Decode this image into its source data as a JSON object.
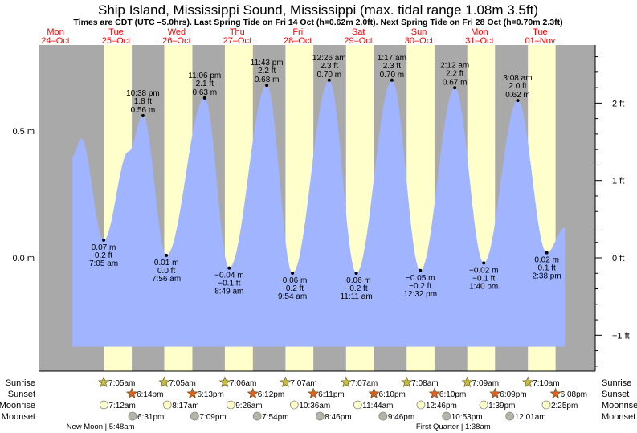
{
  "chart_data": {
    "type": "area",
    "title": "Ship Island, Mississippi Sound, Mississippi (max. tidal range 1.08m 3.5ft)",
    "subtitle": "Times are CDT (UTC –5.0hrs). Last Spring Tide on Fri 14 Oct (h=0.62m 2.0ft). Next Spring Tide on Fri 28 Oct (h=0.70m 2.3ft)",
    "time_origin": "25-Oct 00:00 (hours)",
    "days": [
      {
        "dow": "Mon",
        "date": "24–Oct",
        "t": -24
      },
      {
        "dow": "Tue",
        "date": "25–Oct",
        "t": 0
      },
      {
        "dow": "Wed",
        "date": "26–Oct",
        "t": 24
      },
      {
        "dow": "Thu",
        "date": "27–Oct",
        "t": 48
      },
      {
        "dow": "Fri",
        "date": "28–Oct",
        "t": 72
      },
      {
        "dow": "Sat",
        "date": "29–Oct",
        "t": 96
      },
      {
        "dow": "Sun",
        "date": "30–Oct",
        "t": 120
      },
      {
        "dow": "Mon",
        "date": "31–Oct",
        "t": 144
      },
      {
        "dow": "Tue",
        "date": "01–Nov",
        "t": 168
      }
    ],
    "left_axis": {
      "ticks": [
        {
          "v": 0.5,
          "label": "0.5 m"
        },
        {
          "v": 0.0,
          "label": "0.0 m"
        }
      ]
    },
    "right_axis": {
      "ticks": [
        {
          "ft": 2,
          "label": "2 ft"
        },
        {
          "ft": 1,
          "label": "1 ft"
        },
        {
          "ft": 0,
          "label": "0 ft"
        },
        {
          "ft": -1,
          "label": "−1 ft"
        }
      ]
    },
    "ylim_m": [
      -0.35,
      0.85
    ],
    "curve_points": [
      {
        "t": -5.3,
        "m": 0.4
      },
      {
        "t": -1.8,
        "m": 0.47
      },
      {
        "t": 17.0,
        "m": 0.42
      },
      {
        "t": 189.8,
        "m": 0.12
      }
    ],
    "extremes": [
      {
        "type": "low",
        "t": 7.08,
        "m": 0.07,
        "m_label": "0.07 m",
        "ft_label": "0.2 ft",
        "time": "7:05 am"
      },
      {
        "type": "high",
        "t": 22.63,
        "m": 0.56,
        "m_label": "0.56 m",
        "ft_label": "1.8 ft",
        "time": "10:38 pm"
      },
      {
        "type": "low",
        "t": 31.93,
        "m": 0.01,
        "m_label": "0.01 m",
        "ft_label": "0.0 ft",
        "time": "7:56 am"
      },
      {
        "type": "high",
        "t": 47.1,
        "m": 0.63,
        "m_label": "0.63 m",
        "ft_label": "2.1 ft",
        "time": "11:06 pm"
      },
      {
        "type": "low",
        "t": 56.82,
        "m": -0.04,
        "m_label": "−0.04 m",
        "ft_label": "−0.1 ft",
        "time": "8:49 am"
      },
      {
        "type": "high",
        "t": 71.72,
        "m": 0.68,
        "m_label": "0.68 m",
        "ft_label": "2.2 ft",
        "time": "11:43 pm"
      },
      {
        "type": "low",
        "t": 81.9,
        "m": -0.06,
        "m_label": "−0.06 m",
        "ft_label": "−0.2 ft",
        "time": "9:54 am"
      },
      {
        "type": "high",
        "t": 96.43,
        "m": 0.7,
        "m_label": "0.70 m",
        "ft_label": "2.3 ft",
        "time": "12:26 am"
      },
      {
        "type": "low",
        "t": 107.18,
        "m": -0.06,
        "m_label": "−0.06 m",
        "ft_label": "−0.2 ft",
        "time": "11:11 am"
      },
      {
        "type": "high",
        "t": 121.28,
        "m": 0.7,
        "m_label": "0.70 m",
        "ft_label": "2.3 ft",
        "time": "1:17 am"
      },
      {
        "type": "low",
        "t": 132.53,
        "m": -0.05,
        "m_label": "−0.05 m",
        "ft_label": "−0.2 ft",
        "time": "12:32 pm"
      },
      {
        "type": "high",
        "t": 146.2,
        "m": 0.67,
        "m_label": "0.67 m",
        "ft_label": "2.2 ft",
        "time": "2:12 am"
      },
      {
        "type": "low",
        "t": 157.67,
        "m": -0.02,
        "m_label": "−0.02 m",
        "ft_label": "−0.1 ft",
        "time": "1:40 pm"
      },
      {
        "type": "high",
        "t": 171.13,
        "m": 0.62,
        "m_label": "0.62 m",
        "ft_label": "2.0 ft",
        "time": "3:08 am"
      },
      {
        "type": "low",
        "t": 182.63,
        "m": 0.02,
        "m_label": "0.02 m",
        "ft_label": "0.1 ft",
        "time": "2:38 pm"
      }
    ],
    "row_labels": {
      "sunrise": "Sunrise",
      "sunset": "Sunset",
      "moonrise": "Moonrise",
      "moonset": "Moonset"
    },
    "sunrise": [
      {
        "t": 7.08,
        "label": "7:05am"
      },
      {
        "t": 31.08,
        "label": "7:05am"
      },
      {
        "t": 55.1,
        "label": "7:06am"
      },
      {
        "t": 79.12,
        "label": "7:07am"
      },
      {
        "t": 103.12,
        "label": "7:07am"
      },
      {
        "t": 127.13,
        "label": "7:08am"
      },
      {
        "t": 151.15,
        "label": "7:09am"
      },
      {
        "t": 175.17,
        "label": "7:10am"
      }
    ],
    "sunset": [
      {
        "t": 18.23,
        "label": "6:14pm"
      },
      {
        "t": 42.22,
        "label": "6:13pm"
      },
      {
        "t": 66.2,
        "label": "6:12pm"
      },
      {
        "t": 90.18,
        "label": "6:11pm"
      },
      {
        "t": 114.17,
        "label": "6:10pm"
      },
      {
        "t": 138.17,
        "label": "6:10pm"
      },
      {
        "t": 162.15,
        "label": "6:09pm"
      },
      {
        "t": 186.13,
        "label": "6:08pm"
      }
    ],
    "moonrise": [
      {
        "t": 7.2,
        "label": "7:12am"
      },
      {
        "t": 32.28,
        "label": "8:17am"
      },
      {
        "t": 57.43,
        "label": "9:26am"
      },
      {
        "t": 82.6,
        "label": "10:36am"
      },
      {
        "t": 107.73,
        "label": "11:44am"
      },
      {
        "t": 132.77,
        "label": "12:46pm"
      },
      {
        "t": 157.65,
        "label": "1:39pm"
      },
      {
        "t": 182.42,
        "label": "2:25pm"
      }
    ],
    "moonset": [
      {
        "t": 18.52,
        "label": "6:31pm"
      },
      {
        "t": 43.15,
        "label": "7:09pm"
      },
      {
        "t": 67.9,
        "label": "7:54pm"
      },
      {
        "t": 92.77,
        "label": "8:46pm"
      },
      {
        "t": 117.77,
        "label": "9:46pm"
      },
      {
        "t": 142.88,
        "label": "10:53pm"
      },
      {
        "t": 168.02,
        "label": "12:01am"
      }
    ],
    "moon_phases": [
      {
        "label": "New Moon | 5:48am",
        "t": 5.8
      },
      {
        "label": "First Quarter | 1:38am",
        "t": 145.6
      }
    ],
    "colors": {
      "night": "#a9a9a9",
      "day": "#ffffcc",
      "water": "#a0b4ff",
      "day_label": "#ff0000",
      "sunrise": "#c8c040",
      "sunset": "#e06020",
      "moonrise": "#ffffc8",
      "moonset": "#b4b4a8"
    }
  }
}
